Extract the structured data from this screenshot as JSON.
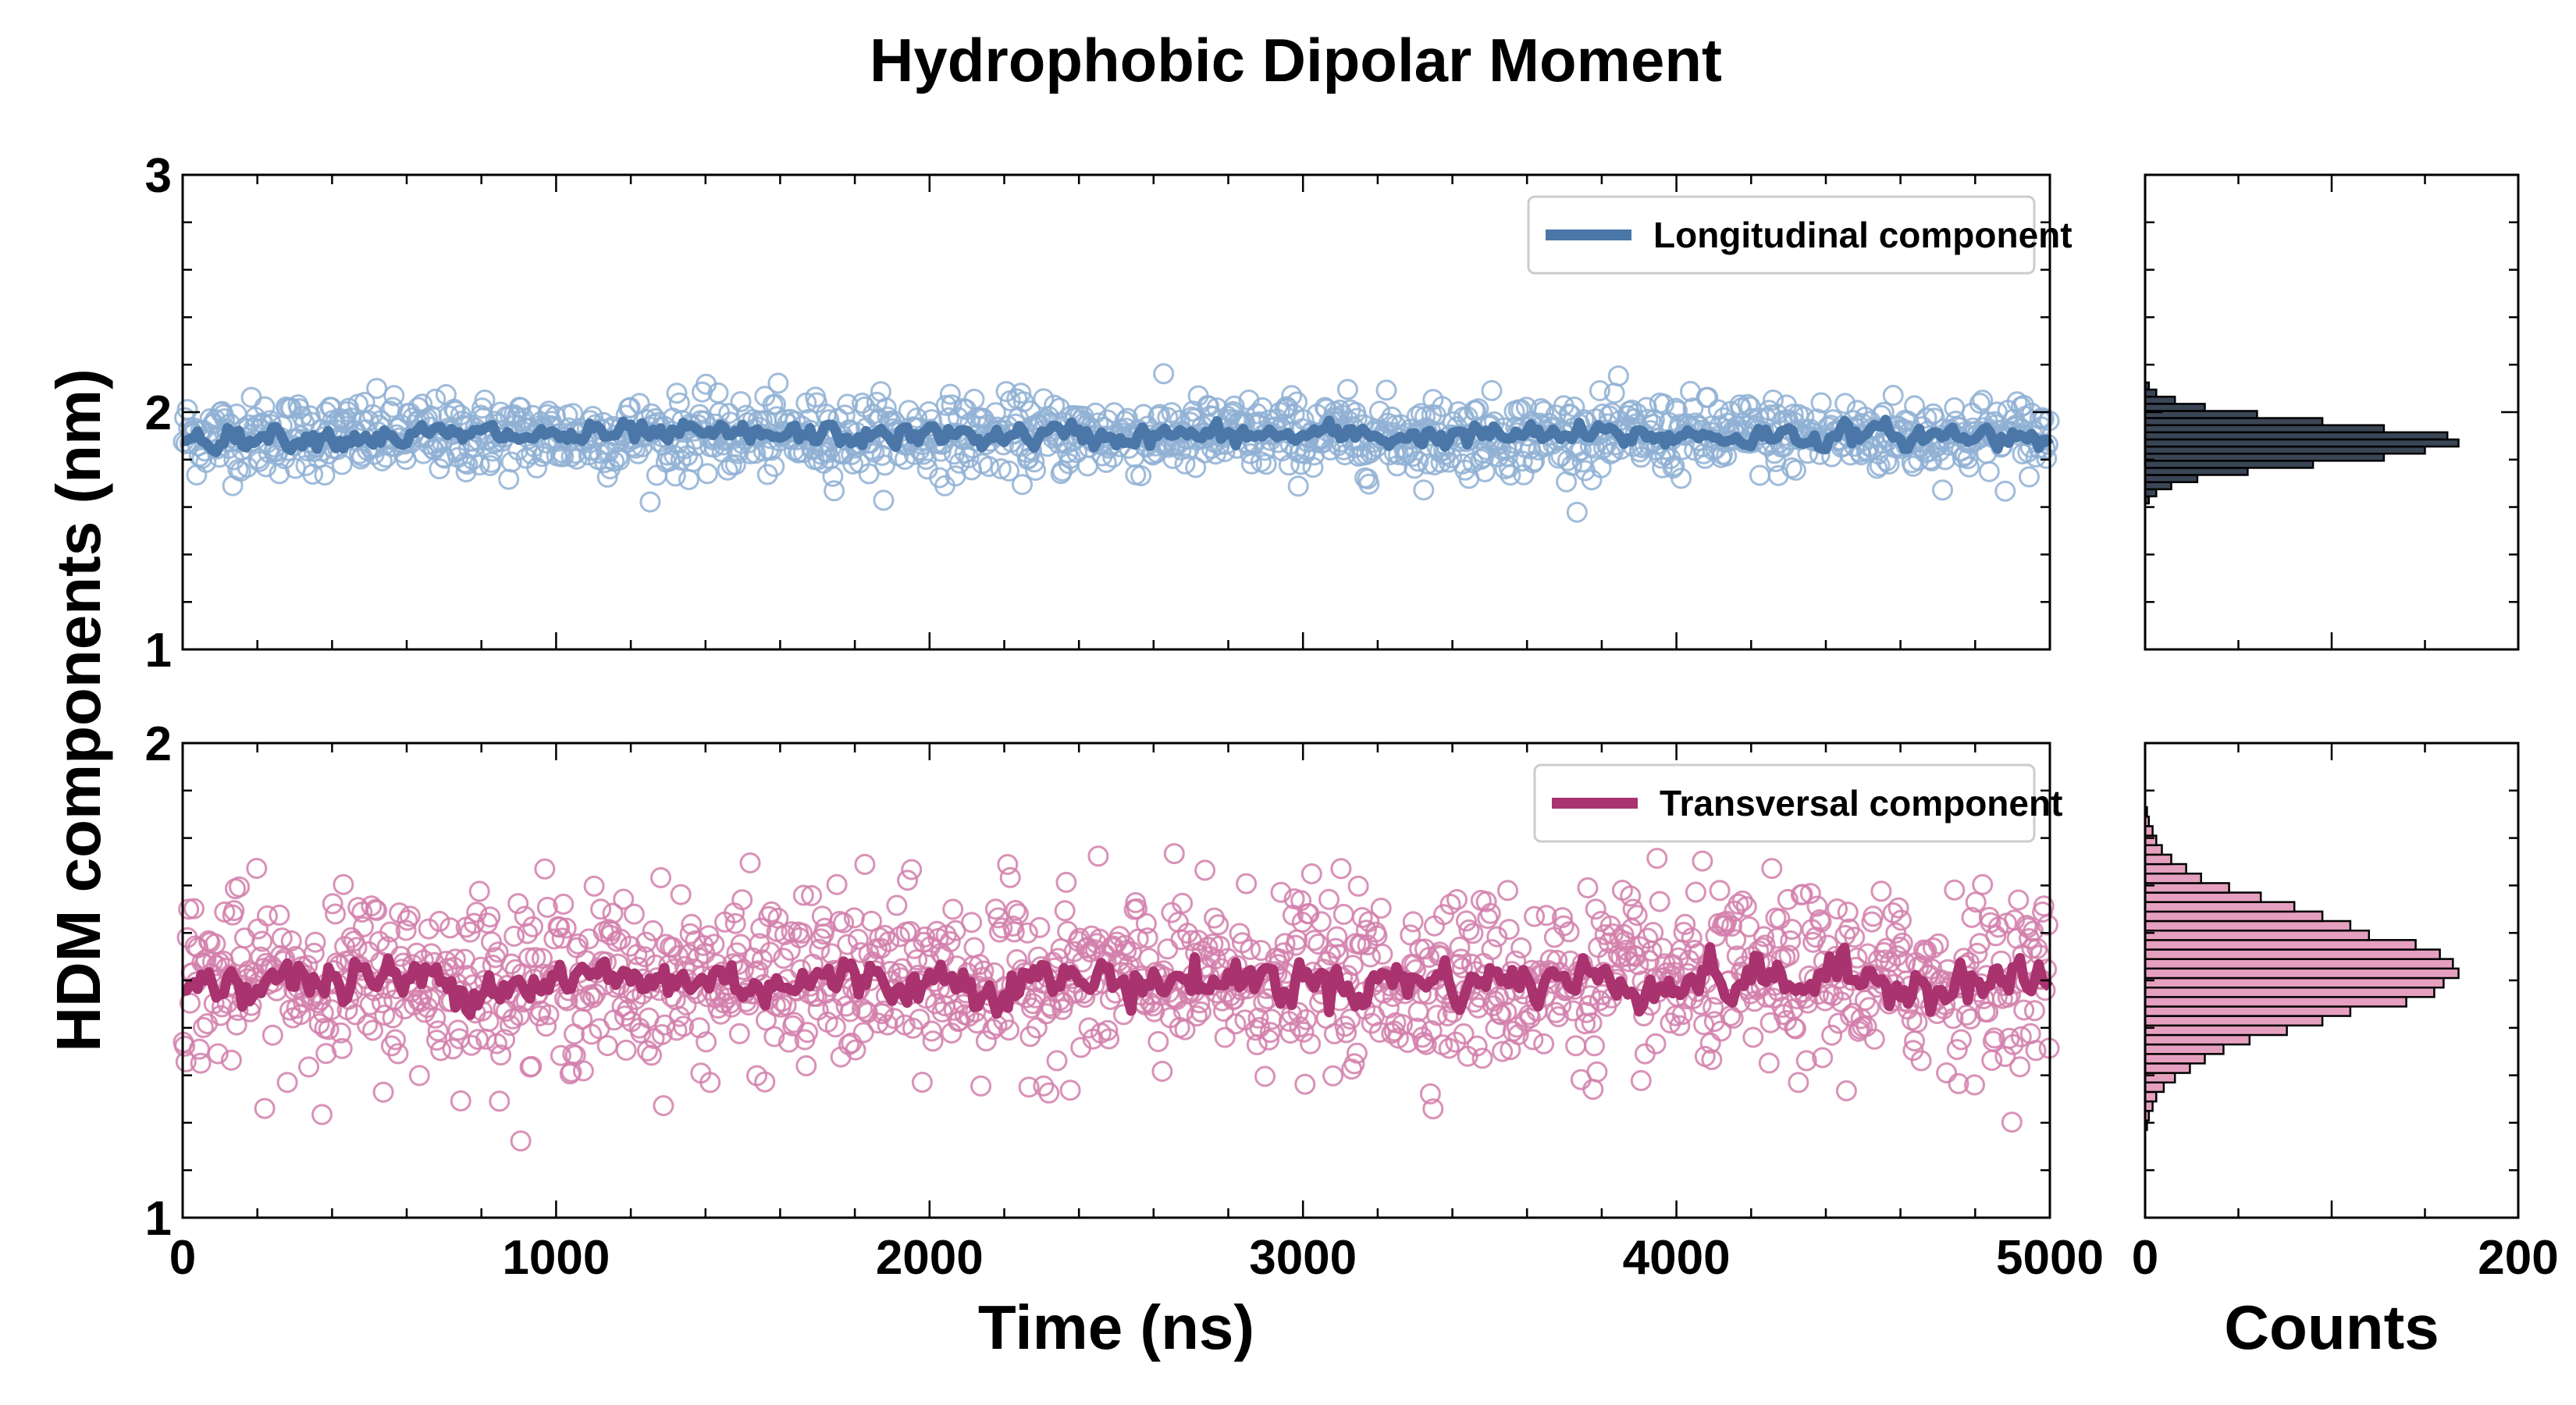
{
  "title": "Hydrophobic Dipolar Moment",
  "ylabel": "HDM components (nm)",
  "colors": {
    "longitudinal": "#4a77a8",
    "longitudinal_points": "#8fb0d3",
    "transversal": "#a8336f",
    "transversal_points": "#d27fab",
    "hist_top_fill": "#3a4555",
    "hist_bottom_fill": "#e6a0bf",
    "hist_edge": "#000000"
  },
  "chart_data": [
    {
      "id": "top-timeseries",
      "type": "scatter",
      "xlabel": "",
      "xlim": [
        0,
        5000
      ],
      "ylim": [
        1,
        3
      ],
      "x_ticks": [
        "0",
        "1000",
        "2000",
        "3000",
        "4000",
        "5000"
      ],
      "y_ticks": [
        "1",
        "2",
        "3"
      ],
      "legend": "top-right",
      "series": [
        {
          "name": "Longitudinal component",
          "kind": "running-average-line",
          "mean": 1.9,
          "spread": 0.03
        },
        {
          "kind": "raw-points",
          "mean": 1.9,
          "spread": 0.08,
          "n": 1400
        }
      ]
    },
    {
      "id": "bottom-timeseries",
      "type": "scatter",
      "xlabel": "Time (ns)",
      "xlim": [
        0,
        5000
      ],
      "ylim": [
        1,
        2
      ],
      "x_ticks": [
        "0",
        "1000",
        "2000",
        "3000",
        "4000",
        "5000"
      ],
      "y_ticks": [
        "1",
        "2"
      ],
      "legend": "top-right",
      "series": [
        {
          "name": "Transversal component",
          "kind": "running-average-line",
          "mean": 1.5,
          "spread": 0.03
        },
        {
          "kind": "raw-points",
          "mean": 1.5,
          "spread": 0.09,
          "n": 1400
        }
      ]
    },
    {
      "id": "top-histogram",
      "type": "bar",
      "orientation": "horizontal",
      "xlabel": "",
      "xlim": [
        0,
        200
      ],
      "ylim": [
        1,
        3
      ],
      "bin_centers": [
        1.63,
        1.66,
        1.69,
        1.72,
        1.75,
        1.78,
        1.81,
        1.84,
        1.87,
        1.9,
        1.93,
        1.96,
        1.99,
        2.02,
        2.05,
        2.08,
        2.11
      ],
      "counts": [
        2,
        6,
        14,
        28,
        55,
        90,
        128,
        150,
        168,
        162,
        128,
        95,
        60,
        32,
        16,
        6,
        2
      ]
    },
    {
      "id": "bottom-histogram",
      "type": "bar",
      "orientation": "horizontal",
      "xlabel": "Counts",
      "xlim": [
        0,
        200
      ],
      "ylim": [
        1,
        2
      ],
      "x_ticks": [
        "0",
        "200"
      ],
      "bin_centers": [
        1.195,
        1.215,
        1.235,
        1.255,
        1.275,
        1.295,
        1.315,
        1.335,
        1.355,
        1.375,
        1.395,
        1.415,
        1.435,
        1.455,
        1.475,
        1.495,
        1.515,
        1.535,
        1.555,
        1.575,
        1.595,
        1.615,
        1.635,
        1.655,
        1.675,
        1.695,
        1.715,
        1.735,
        1.755,
        1.775,
        1.795,
        1.815,
        1.835,
        1.855
      ],
      "counts": [
        1,
        2,
        4,
        6,
        10,
        16,
        24,
        32,
        42,
        56,
        76,
        95,
        110,
        140,
        155,
        160,
        168,
        165,
        158,
        145,
        120,
        110,
        95,
        80,
        62,
        45,
        30,
        22,
        14,
        9,
        6,
        4,
        2,
        1
      ]
    }
  ]
}
